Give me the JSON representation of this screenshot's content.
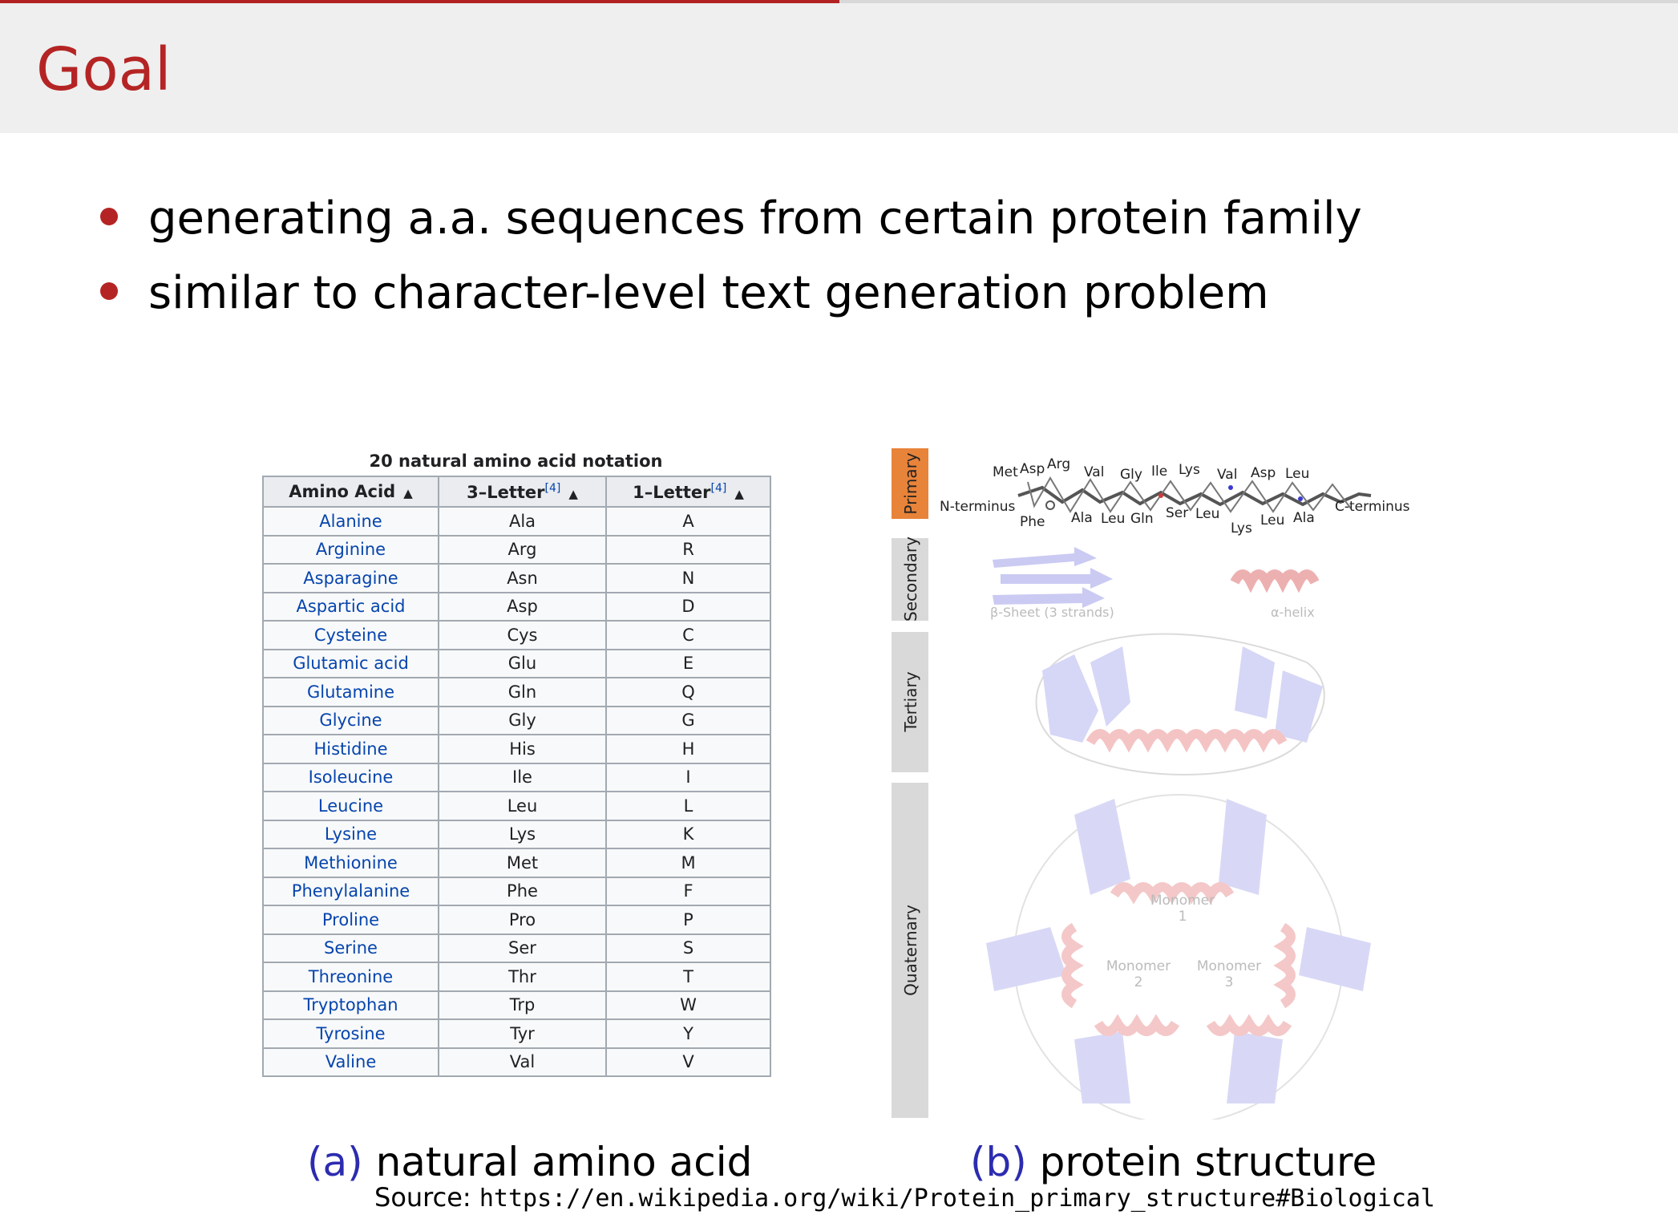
{
  "slide": {
    "title": "Goal",
    "progress": 0.5,
    "bullets": [
      "generating a.a. sequences from certain protein family",
      "similar to character-level text generation problem"
    ]
  },
  "colors": {
    "accent": "#b52424",
    "link": "#0645ad",
    "caption_label": "#2c2cb0",
    "primary_tab": "#e8833a"
  },
  "table": {
    "caption": "20 natural amino acid notation",
    "headers": [
      "Amino Acid",
      "3–Letter",
      "1–Letter"
    ],
    "header_ref": "[4]",
    "rows": [
      [
        "Alanine",
        "Ala",
        "A"
      ],
      [
        "Arginine",
        "Arg",
        "R"
      ],
      [
        "Asparagine",
        "Asn",
        "N"
      ],
      [
        "Aspartic acid",
        "Asp",
        "D"
      ],
      [
        "Cysteine",
        "Cys",
        "C"
      ],
      [
        "Glutamic acid",
        "Glu",
        "E"
      ],
      [
        "Glutamine",
        "Gln",
        "Q"
      ],
      [
        "Glycine",
        "Gly",
        "G"
      ],
      [
        "Histidine",
        "His",
        "H"
      ],
      [
        "Isoleucine",
        "Ile",
        "I"
      ],
      [
        "Leucine",
        "Leu",
        "L"
      ],
      [
        "Lysine",
        "Lys",
        "K"
      ],
      [
        "Methionine",
        "Met",
        "M"
      ],
      [
        "Phenylalanine",
        "Phe",
        "F"
      ],
      [
        "Proline",
        "Pro",
        "P"
      ],
      [
        "Serine",
        "Ser",
        "S"
      ],
      [
        "Threonine",
        "Thr",
        "T"
      ],
      [
        "Tryptophan",
        "Trp",
        "W"
      ],
      [
        "Tyrosine",
        "Tyr",
        "Y"
      ],
      [
        "Valine",
        "Val",
        "V"
      ]
    ]
  },
  "structure": {
    "levels": [
      "Primary",
      "Secondary",
      "Tertiary",
      "Quaternary"
    ],
    "n_terminus": "N-terminus",
    "c_terminus": "C-terminus",
    "residues_top": [
      "Met",
      "Asp",
      "Arg",
      "Val",
      "Gly",
      "Ile",
      "Lys",
      "Val",
      "Asp",
      "Leu"
    ],
    "residues_bottom": [
      "Phe",
      "Ala",
      "Leu",
      "Gln",
      "Ser",
      "Leu",
      "Lys",
      "Leu",
      "Ala"
    ],
    "beta_sheet_label": "β-Sheet (3 strands)",
    "alpha_helix_label": "α-helix",
    "monomers": [
      {
        "word": "Monomer",
        "num": "1"
      },
      {
        "word": "Monomer",
        "num": "2"
      },
      {
        "word": "Monomer",
        "num": "3"
      }
    ]
  },
  "captions": {
    "a_label": "(a)",
    "a_text": "natural amino acid",
    "b_label": "(b)",
    "b_text": "protein structure",
    "source_prefix": "Source:",
    "source_url": "https://en.wikipedia.org/wiki/Protein_primary_structure#Biological"
  }
}
